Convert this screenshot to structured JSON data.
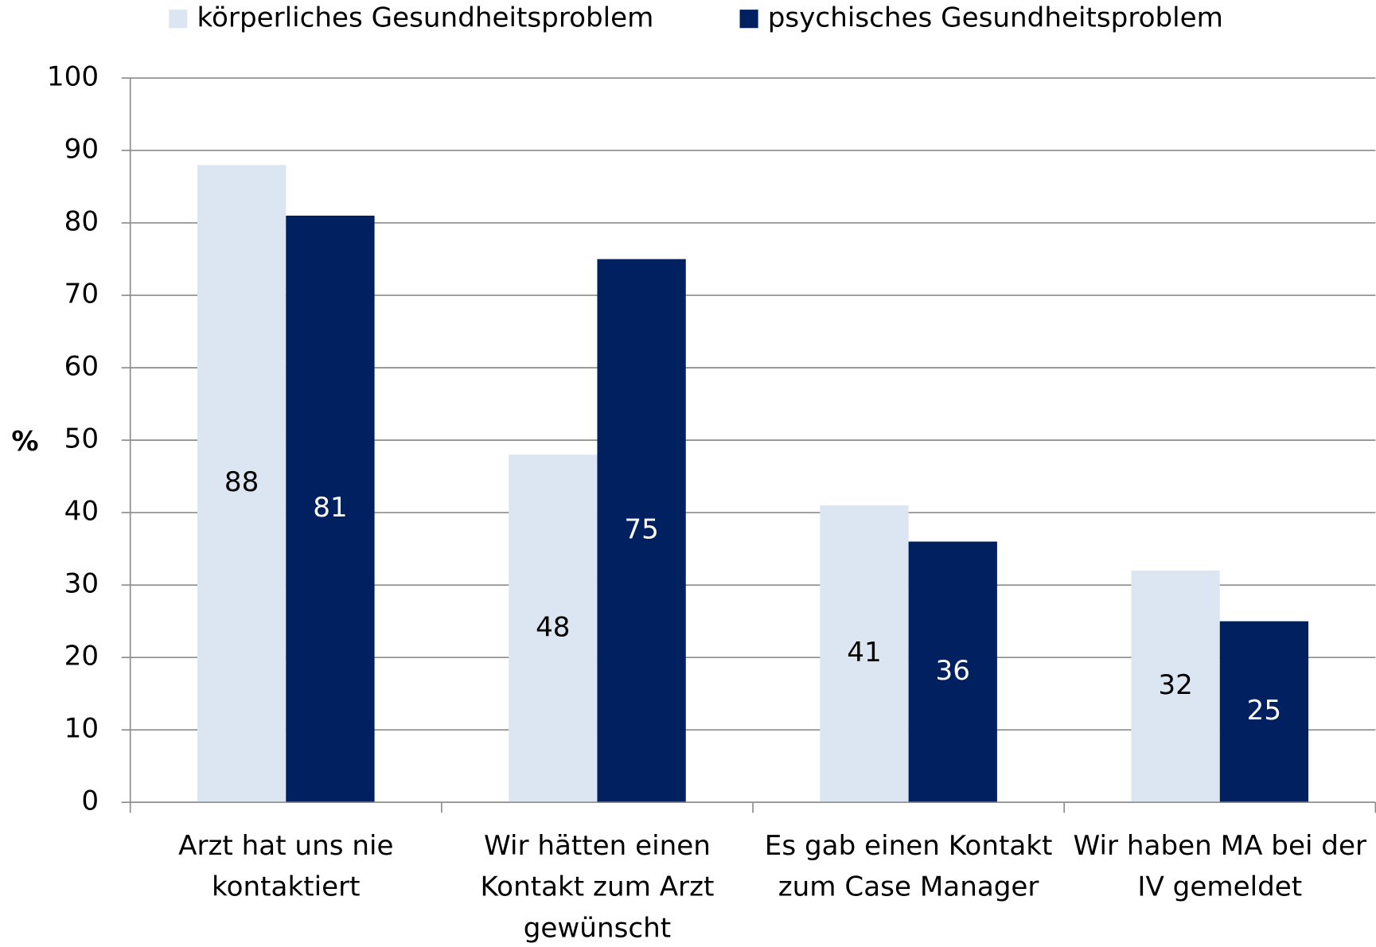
{
  "chart_data": {
    "type": "bar",
    "y_label": "%",
    "categories": [
      [
        "Arzt hat uns nie",
        "kontaktiert"
      ],
      [
        "Wir hätten einen",
        "Kontakt zum Arzt",
        "gewünscht"
      ],
      [
        "Es gab einen Kontakt",
        "zum Case Manager"
      ],
      [
        "Wir haben MA bei der",
        "IV gemeldet"
      ]
    ],
    "series": [
      {
        "name": "körperliches Gesundheitsproblem",
        "color": "#dce6f2",
        "label_color": "#000000",
        "values": [
          88,
          48,
          41,
          32
        ]
      },
      {
        "name": "psychisches Gesundheitsproblem",
        "color": "#002060",
        "label_color": "#ffffff",
        "values": [
          81,
          75,
          36,
          25
        ]
      }
    ],
    "ylim": [
      0,
      100
    ],
    "yticks": [
      0,
      10,
      20,
      30,
      40,
      50,
      60,
      70,
      80,
      90,
      100
    ],
    "grid": true,
    "legend": "top"
  }
}
